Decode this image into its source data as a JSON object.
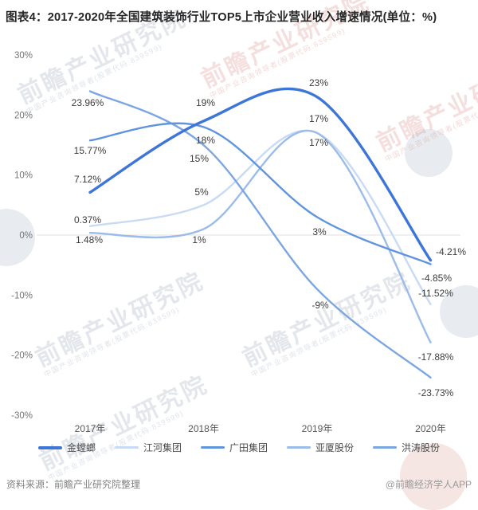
{
  "title": "图表4：2017-2020年全国建筑装饰行业TOP5上市企业营业收入增速情况(单位：%)",
  "footer": {
    "source": "资料来源：前瞻产业研究院整理",
    "credit": "@前瞻经济学人APP"
  },
  "watermark": {
    "text": "前瞻产业研究院",
    "subtext": "中国产业咨询领导者(股票代码:839599)"
  },
  "chart_data": {
    "type": "line",
    "title": "图表4：2017-2020年全国建筑装饰行业TOP5上市企业营业收入增速情况(单位：%)",
    "x": [
      "2017年",
      "2018年",
      "2019年",
      "2020年"
    ],
    "xlabel": "",
    "ylabel": "",
    "ylim": [
      -30,
      30
    ],
    "y_ticks": [
      "30%",
      "20%",
      "10%",
      "0%",
      "-10%",
      "-20%",
      "-30%"
    ],
    "grid": "zero-line-only",
    "smooth": true,
    "legend_position": "bottom",
    "series": [
      {
        "name": "金螳螂",
        "color": "#3d76d8",
        "width": 3.4,
        "values": [
          7.12,
          19,
          23,
          -4.21
        ],
        "labels": [
          "7.12%",
          "19%",
          "23%",
          "-4.21%"
        ]
      },
      {
        "name": "江河集团",
        "color": "#c8daf4",
        "width": 2.4,
        "values": [
          1.48,
          5,
          17,
          -11.52
        ],
        "labels": [
          "1.48%",
          "5%",
          "17%",
          "-11.52%"
        ]
      },
      {
        "name": "广田集团",
        "color": "#6094dd",
        "width": 2.4,
        "values": [
          15.77,
          18,
          3,
          -4.85
        ],
        "labels": [
          "15.77%",
          "18%",
          "3%",
          "-4.85%"
        ]
      },
      {
        "name": "亚厦股份",
        "color": "#9bbbe9",
        "width": 2.4,
        "values": [
          0.37,
          1,
          17,
          -17.88
        ],
        "labels": [
          "0.37%",
          "1%",
          "17%",
          "-17.88%"
        ]
      },
      {
        "name": "洪涛股份",
        "color": "#7ca6e2",
        "width": 2.4,
        "values": [
          23.96,
          15,
          -9,
          -23.73
        ],
        "labels": [
          "23.96%",
          "15%",
          "-9%",
          "-23.73%"
        ]
      }
    ]
  }
}
